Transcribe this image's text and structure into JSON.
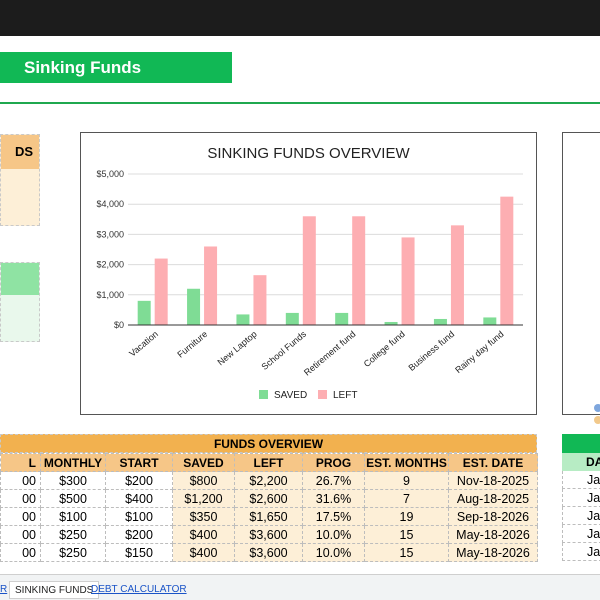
{
  "banner": {
    "title": "Sinking Funds"
  },
  "left_panel": {
    "heading_fragment": "DS"
  },
  "chart_data": {
    "type": "bar",
    "title": "SINKING FUNDS OVERVIEW",
    "categories": [
      "Vacation",
      "Furniture",
      "New Laptop",
      "School Funds",
      "Retirement fund",
      "College fund",
      "Business fund",
      "Rainy day fund"
    ],
    "series": [
      {
        "name": "SAVED",
        "color": "#7fdc95",
        "values": [
          800,
          1200,
          350,
          400,
          400,
          100,
          200,
          250
        ]
      },
      {
        "name": "LEFT",
        "color": "#fdaeb2",
        "values": [
          2200,
          2600,
          1650,
          3600,
          3600,
          2900,
          3300,
          4250
        ]
      }
    ],
    "ylim": [
      0,
      5000
    ],
    "yticks": [
      "$0",
      "$1,000",
      "$2,000",
      "$3,000",
      "$4,000",
      "$5,000"
    ],
    "grid": true,
    "legend": "bottom"
  },
  "funds_table": {
    "title": "FUNDS OVERVIEW",
    "columns": [
      "L",
      "MONTHLY",
      "START",
      "SAVED",
      "LEFT",
      "PROG",
      "EST. MONTHS",
      "EST. DATE"
    ],
    "rows": [
      [
        "00",
        "$300",
        "$200",
        "$800",
        "$2,200",
        "26.7%",
        "9",
        "Nov-18-2025"
      ],
      [
        "00",
        "$500",
        "$400",
        "$1,200",
        "$2,600",
        "31.6%",
        "7",
        "Aug-18-2025"
      ],
      [
        "00",
        "$100",
        "$100",
        "$350",
        "$1,650",
        "17.5%",
        "19",
        "Sep-18-2026"
      ],
      [
        "00",
        "$250",
        "$200",
        "$400",
        "$3,600",
        "10.0%",
        "15",
        "May-18-2026"
      ],
      [
        "00",
        "$250",
        "$150",
        "$400",
        "$3,600",
        "10.0%",
        "15",
        "May-18-2026"
      ]
    ]
  },
  "right_table": {
    "header": "DA",
    "cells": [
      "Ja",
      "Ja",
      "Ja",
      "Ja",
      "Ja"
    ]
  },
  "tabs": {
    "left_partial": "R",
    "sinking": "SINKING FUNDS",
    "debt": "DEBT CALCULATOR"
  },
  "colors": {
    "green": "#11b855",
    "orange": "#f6c687",
    "saved": "#7fdc95",
    "left": "#fdaeb2"
  }
}
